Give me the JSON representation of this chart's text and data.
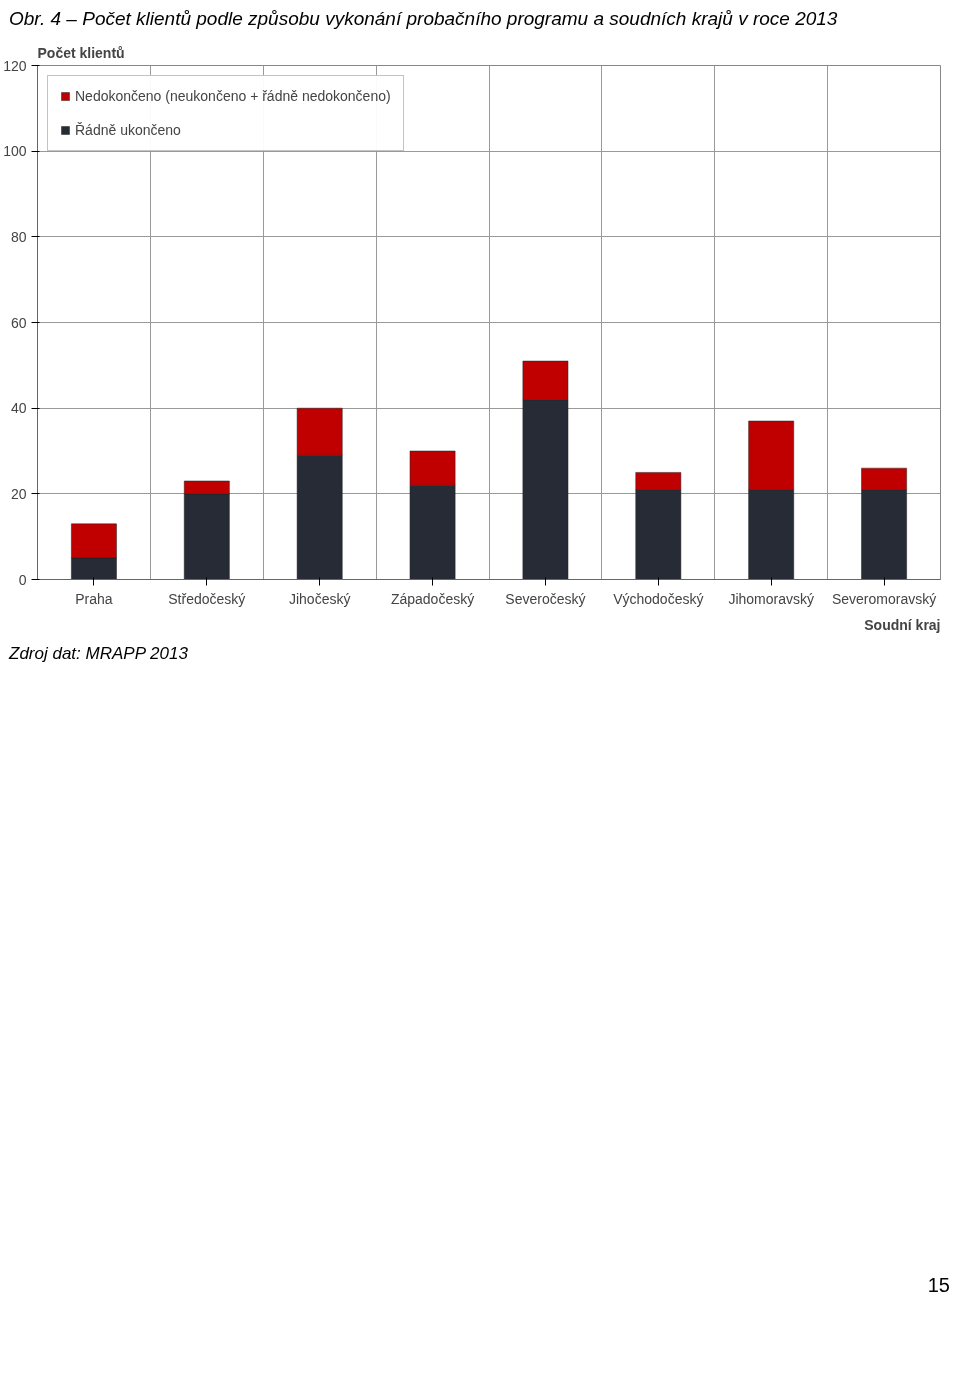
{
  "chart_data": {
    "type": "bar",
    "title": "Obr. 4 – Počet klientů podle způsobu vykonání probačního programu a soudních krajů v roce 2013",
    "ylabel": "Počet klientů",
    "xlabel": "Soudní kraj",
    "categories": [
      "Praha",
      "Středočeský",
      "Jihočeský",
      "Západočeský",
      "Severočeský",
      "Východočeský",
      "Jihomoravský",
      "Severomoravský"
    ],
    "stacked": true,
    "series": [
      {
        "name": "Řádně ukončeno",
        "color": "#262b35",
        "values": [
          5,
          20,
          29,
          22,
          42,
          21,
          21,
          21
        ]
      },
      {
        "name": "Nedokončeno (neukončeno + řádně nedokončeno)",
        "color": "#c00000",
        "values": [
          8,
          3,
          11,
          8,
          9,
          4,
          16,
          5
        ]
      }
    ],
    "ylim": [
      0,
      120
    ],
    "yticks": [
      0,
      20,
      40,
      60,
      80,
      100,
      120
    ],
    "grid": true,
    "legend": "top left",
    "annotations": [
      "Zdroj dat: MRAPP 2013",
      "15"
    ]
  }
}
